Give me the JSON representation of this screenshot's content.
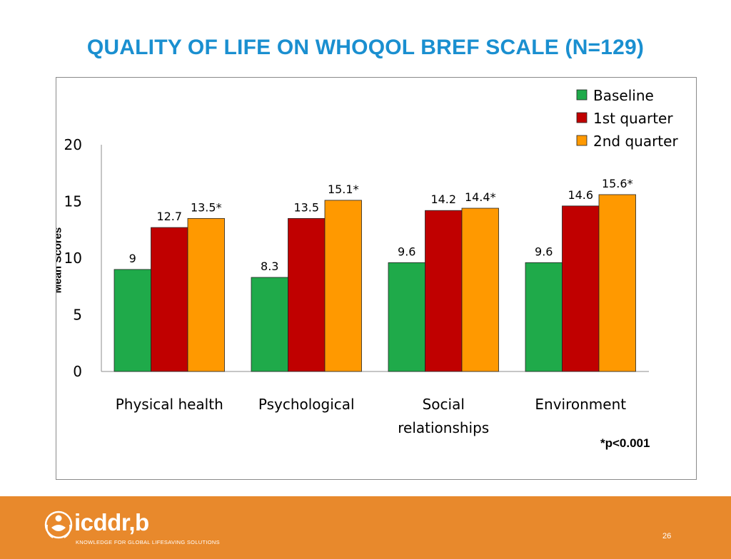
{
  "slide": {
    "title": "QUALITY OF LIFE ON WHOQOL BREF SCALE (N=129)",
    "page_number": "26"
  },
  "logo": {
    "name": "icddr,b",
    "tagline": "KNOWLEDGE FOR GLOBAL LIFESAVING SOLUTIONS"
  },
  "colors": {
    "title": "#1a8fd0",
    "baseline": "#1faa4a",
    "q1": "#c00000",
    "q2": "#ff9900",
    "footer": "#e8892c"
  },
  "chart_data": {
    "type": "bar",
    "title": "",
    "xlabel": "",
    "ylabel": "Mean Scores",
    "ylim": [
      0,
      20
    ],
    "yticks": [
      0,
      5,
      10,
      15,
      20
    ],
    "categories": [
      [
        "Physical health"
      ],
      [
        "Psychological"
      ],
      [
        "Social",
        "relationships"
      ],
      [
        "Environment"
      ]
    ],
    "series": [
      {
        "name": "Baseline",
        "color": "#1faa4a",
        "values": [
          9,
          8.3,
          9.6,
          9.6
        ],
        "labels": [
          "9",
          "8.3",
          "9.6",
          "9.6"
        ]
      },
      {
        "name": "1st quarter",
        "color": "#c00000",
        "values": [
          12.7,
          13.5,
          14.2,
          14.6
        ],
        "labels": [
          "12.7",
          "13.5",
          "14.2",
          "14.6"
        ]
      },
      {
        "name": "2nd quarter",
        "color": "#ff9900",
        "values": [
          13.5,
          15.1,
          14.4,
          15.6
        ],
        "labels": [
          "13.5*",
          "15.1*",
          "14.4*",
          "15.6*"
        ]
      }
    ],
    "legend_position": "top-right",
    "grid": false,
    "annotation": "*p<0.001"
  }
}
